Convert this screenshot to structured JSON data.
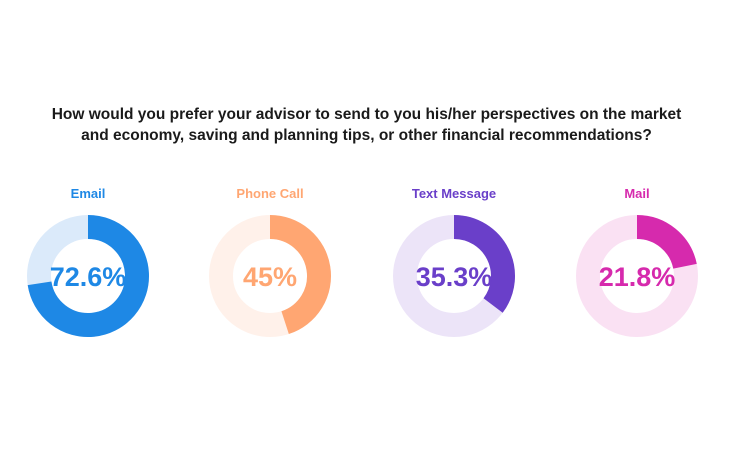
{
  "title_line1": "How would you prefer your advisor to send to you his/her perspectives on the market",
  "title_line2": "and economy, saving and planning tips, or other financial recommendations?",
  "chart_data": {
    "type": "pie",
    "title": "How would you prefer your advisor to send to you his/her perspectives on the market and economy, saving and planning tips, or other financial recommendations?",
    "categories": [
      "Email",
      "Phone Call",
      "Text Message",
      "Mail"
    ],
    "values": [
      72.6,
      45,
      35.3,
      21.8
    ],
    "value_labels": [
      "72.6%",
      "45%",
      "35.3%",
      "21.8%"
    ],
    "colors": [
      "#1e88e5",
      "#ffa672",
      "#6a3fc9",
      "#d62aad"
    ],
    "track_colors": [
      "#dbeafa",
      "#fff1ea",
      "#ece4f8",
      "#fae1f3"
    ]
  }
}
